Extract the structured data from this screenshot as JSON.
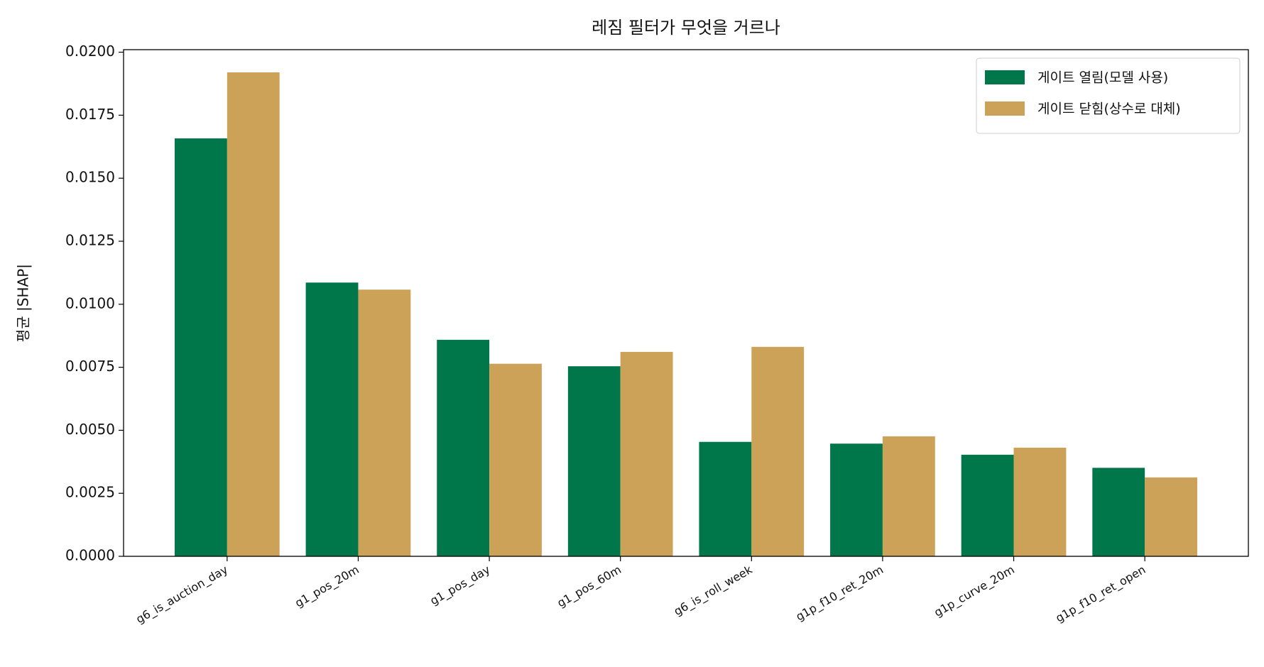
{
  "chart_data": {
    "type": "bar",
    "title": "레짐 필터가 무엇을 거르나",
    "y_label": "평균 |SHAP|",
    "categories": [
      "g6_is_auction_day",
      "g1_pos_20m",
      "g1_pos_day",
      "g1_pos_60m",
      "g6_is_roll_week",
      "g1p_f10_ret_20m",
      "g1p_curve_20m",
      "g1p_f10_ret_open"
    ],
    "series": [
      {
        "name": "게이트 열림(모델 사용)",
        "color": "#00774a",
        "values": [
          0.01658,
          0.01086,
          0.00859,
          0.00754,
          0.00454,
          0.00447,
          0.00403,
          0.00351
        ]
      },
      {
        "name": "게이트 닫힘(상수로 대체)",
        "color": "#cba258",
        "values": [
          0.0192,
          0.01058,
          0.00764,
          0.00811,
          0.00831,
          0.00476,
          0.00431,
          0.00313
        ]
      }
    ],
    "ylim": [
      0,
      0.0201
    ],
    "yticks": [
      {
        "value": 0,
        "label": "0.0000"
      },
      {
        "value": 0.0025,
        "label": "0.0025"
      },
      {
        "value": 0.005,
        "label": "0.0050"
      },
      {
        "value": 0.0075,
        "label": "0.0075"
      },
      {
        "value": 0.01,
        "label": "0.0100"
      },
      {
        "value": 0.0125,
        "label": "0.0125"
      },
      {
        "value": 0.015,
        "label": "0.0150"
      },
      {
        "value": 0.0175,
        "label": "0.0175"
      },
      {
        "value": 0.02,
        "label": "0.0200"
      }
    ],
    "legend": "upper right",
    "grid": false
  }
}
